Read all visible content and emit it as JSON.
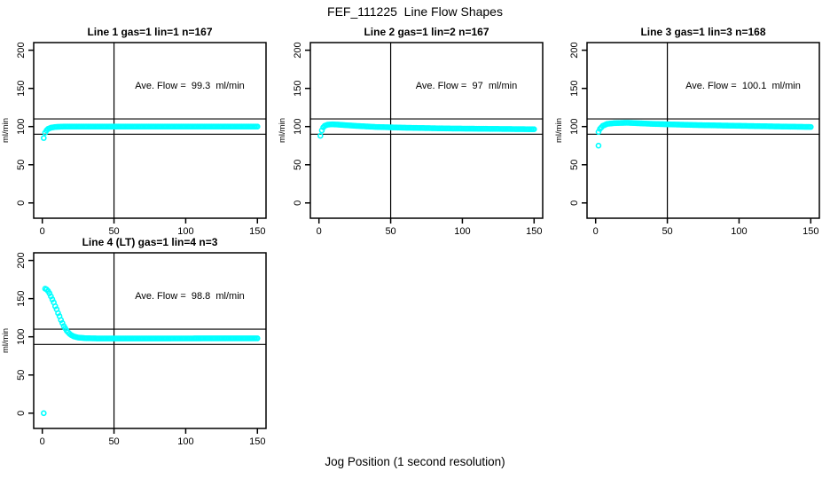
{
  "figure": {
    "title": "FEF_111225  Line Flow Shapes",
    "xlabel": "Jog Position (1 second resolution)",
    "background": "#ffffff",
    "point_color": "#00ffff",
    "axis_color": "#000000",
    "marker": "open-circle"
  },
  "chart_data": [
    {
      "type": "scatter",
      "title": "Line 1 gas=1 lin=1 n=167",
      "annotation": "Ave. Flow =  99.3  ml/min",
      "ave_flow_ml_min": 99.3,
      "n": 167,
      "ylabel": "ml/min",
      "xlim": [
        -6,
        156
      ],
      "ylim": [
        -20,
        210
      ],
      "xticks": [
        0,
        50,
        100,
        150
      ],
      "yticks": [
        0,
        50,
        100,
        150,
        200
      ],
      "hlines": [
        90,
        110
      ],
      "vlines": [
        50
      ],
      "outliers": [
        [
          1,
          85
        ]
      ],
      "profile_keypoints": [
        [
          2,
          92
        ],
        [
          3,
          95
        ],
        [
          4,
          97
        ],
        [
          6,
          98.5
        ],
        [
          9,
          99.5
        ],
        [
          15,
          100
        ],
        [
          150,
          100
        ]
      ],
      "sampling": "points interpolated at 1 x-unit steps between keypoints"
    },
    {
      "type": "scatter",
      "title": "Line 2 gas=1 lin=2 n=167",
      "annotation": "Ave. Flow =  97  ml/min",
      "ave_flow_ml_min": 97,
      "n": 167,
      "ylabel": "ml/min",
      "xlim": [
        -6,
        156
      ],
      "ylim": [
        -20,
        210
      ],
      "xticks": [
        0,
        50,
        100,
        150
      ],
      "yticks": [
        0,
        50,
        100,
        150,
        200
      ],
      "hlines": [
        90,
        110
      ],
      "vlines": [
        50
      ],
      "outliers": [
        [
          1,
          88
        ]
      ],
      "profile_keypoints": [
        [
          2,
          95
        ],
        [
          3,
          99
        ],
        [
          4,
          101
        ],
        [
          6,
          102.5
        ],
        [
          9,
          103
        ],
        [
          14,
          102.5
        ],
        [
          25,
          101
        ],
        [
          40,
          99.5
        ],
        [
          60,
          98.5
        ],
        [
          90,
          97.5
        ],
        [
          150,
          96.5
        ]
      ],
      "sampling": "points interpolated at 1 x-unit steps between keypoints"
    },
    {
      "type": "scatter",
      "title": "Line 3 gas=1 lin=3 n=168",
      "annotation": "Ave. Flow =  100.1  ml/min",
      "ave_flow_ml_min": 100.1,
      "n": 168,
      "ylabel": "ml/min",
      "xlim": [
        -6,
        156
      ],
      "ylim": [
        -20,
        210
      ],
      "xticks": [
        0,
        50,
        100,
        150
      ],
      "yticks": [
        0,
        50,
        100,
        150,
        200
      ],
      "hlines": [
        90,
        110
      ],
      "vlines": [
        50
      ],
      "outliers": [
        [
          2,
          75
        ]
      ],
      "profile_keypoints": [
        [
          2,
          93
        ],
        [
          3,
          97
        ],
        [
          5,
          101
        ],
        [
          8,
          103.5
        ],
        [
          13,
          104.5
        ],
        [
          22,
          105
        ],
        [
          40,
          103.5
        ],
        [
          70,
          102
        ],
        [
          100,
          101
        ],
        [
          125,
          100.2
        ],
        [
          150,
          99.5
        ]
      ],
      "sampling": "points interpolated at 1 x-unit steps between keypoints"
    },
    {
      "type": "scatter",
      "title": "Line 4 (LT) gas=1 lin=4 n=3",
      "annotation": "Ave. Flow =  98.8  ml/min",
      "ave_flow_ml_min": 98.8,
      "n": 3,
      "ylabel": "ml/min",
      "xlim": [
        -6,
        156
      ],
      "ylim": [
        -20,
        210
      ],
      "xticks": [
        0,
        50,
        100,
        150
      ],
      "yticks": [
        0,
        50,
        100,
        150,
        200
      ],
      "hlines": [
        90,
        110
      ],
      "vlines": [
        50
      ],
      "outliers": [
        [
          1,
          0
        ]
      ],
      "profile_keypoints": [
        [
          2,
          163
        ],
        [
          3,
          162
        ],
        [
          4,
          160
        ],
        [
          5,
          157
        ],
        [
          6,
          153
        ],
        [
          7,
          149
        ],
        [
          8,
          145
        ],
        [
          9,
          140
        ],
        [
          10,
          136
        ],
        [
          11,
          131
        ],
        [
          12,
          127
        ],
        [
          13,
          122
        ],
        [
          14,
          118
        ],
        [
          15,
          114
        ],
        [
          16,
          111
        ],
        [
          17,
          108
        ],
        [
          18,
          106
        ],
        [
          19,
          104
        ],
        [
          20,
          102.5
        ],
        [
          22,
          100.5
        ],
        [
          25,
          99
        ],
        [
          30,
          98.2
        ],
        [
          40,
          97.8
        ],
        [
          150,
          98
        ]
      ],
      "sampling": "points interpolated at 1 x-unit steps between keypoints"
    }
  ]
}
